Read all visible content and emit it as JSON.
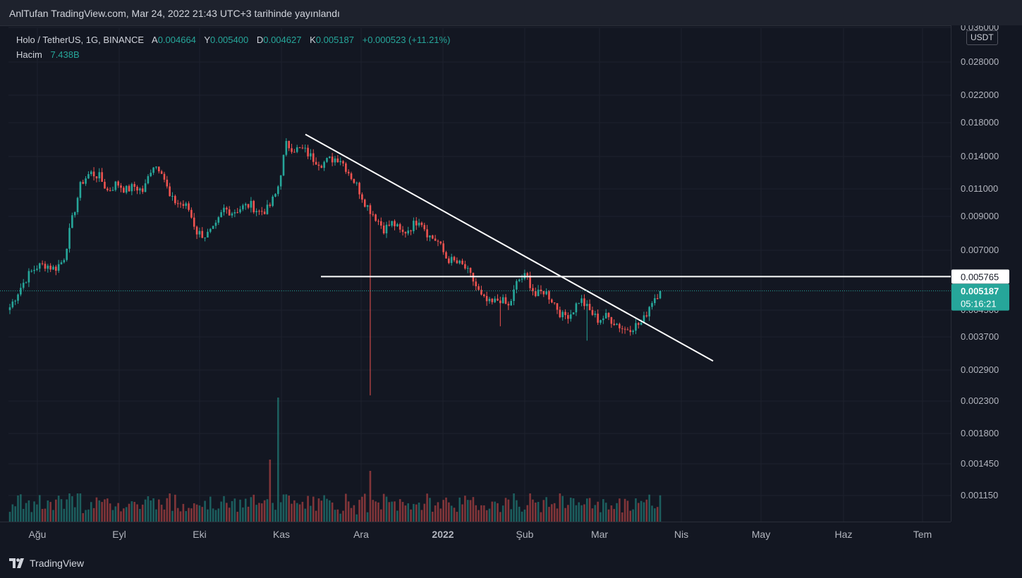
{
  "header": {
    "published": "AnlTufan TradingView.com, Mar 24, 2022 21:43 UTC+3 tarihinde yayınlandı"
  },
  "legend": {
    "symbol": "Holo / TetherUS, 1G, BINANCE",
    "open_label": "A",
    "open": "0.004664",
    "high_label": "Y",
    "high": "0.005400",
    "low_label": "D",
    "low": "0.004627",
    "close_label": "K",
    "close": "0.005187",
    "change": "+0.000523 (+11.21%)",
    "volume_label": "Hacim",
    "volume": "7.438B"
  },
  "currency": "USDT",
  "brand": "TradingView",
  "colors": {
    "background": "#131722",
    "up": "#26a69a",
    "down": "#ef5350",
    "grid": "#1e222d",
    "drawing": "#ffffff"
  },
  "chart_data": {
    "type": "candlestick",
    "scale": "log",
    "x_labels": [
      "Ağu",
      "Eyl",
      "Eki",
      "Kas",
      "Ara",
      "2022",
      "Şub",
      "Mar",
      "Nis",
      "May",
      "Haz",
      "Tem"
    ],
    "y_ticks": [
      "0.036000",
      "0.028000",
      "0.022000",
      "0.018000",
      "0.014000",
      "0.011000",
      "0.009000",
      "0.007000",
      "0.004500",
      "0.003700",
      "0.002900",
      "0.002300",
      "0.001800",
      "0.001450",
      "0.001150"
    ],
    "price_labels": {
      "level": "0.005765",
      "last": "0.005187",
      "countdown": "05:16:21"
    },
    "key_closes": [
      0.0046,
      0.0052,
      0.0058,
      0.0062,
      0.0063,
      0.0061,
      0.0065,
      0.0088,
      0.0115,
      0.0124,
      0.0121,
      0.0108,
      0.0115,
      0.0109,
      0.0112,
      0.0108,
      0.0132,
      0.0128,
      0.0102,
      0.0099,
      0.0096,
      0.008,
      0.0078,
      0.0082,
      0.0095,
      0.0093,
      0.0096,
      0.0098,
      0.0093,
      0.0095,
      0.0108,
      0.0153,
      0.0148,
      0.0147,
      0.0138,
      0.0133,
      0.0137,
      0.0139,
      0.0125,
      0.0112,
      0.0098,
      0.009,
      0.0082,
      0.0086,
      0.0079,
      0.0083,
      0.0089,
      0.0078,
      0.0075,
      0.0066,
      0.0064,
      0.0062,
      0.0056,
      0.0049,
      0.0047,
      0.0049,
      0.0046,
      0.0056,
      0.0058,
      0.005,
      0.0052,
      0.0048,
      0.0043,
      0.0044,
      0.0049,
      0.0045,
      0.0042,
      0.0043,
      0.0041,
      0.0039,
      0.004,
      0.0041,
      0.0048,
      0.0052
    ],
    "drawings": {
      "trendline": {
        "start_price": 0.0165,
        "end_price": 0.0031
      },
      "horizontal": {
        "price": 0.005765
      }
    }
  }
}
